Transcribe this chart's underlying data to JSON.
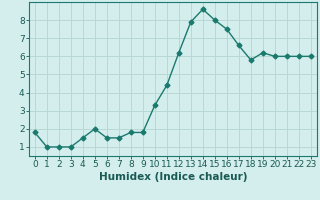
{
  "x": [
    0,
    1,
    2,
    3,
    4,
    5,
    6,
    7,
    8,
    9,
    10,
    11,
    12,
    13,
    14,
    15,
    16,
    17,
    18,
    19,
    20,
    21,
    22,
    23
  ],
  "y": [
    1.8,
    1.0,
    1.0,
    1.0,
    1.5,
    2.0,
    1.5,
    1.5,
    1.8,
    1.8,
    3.3,
    4.4,
    6.2,
    7.9,
    8.6,
    8.0,
    7.5,
    6.6,
    5.8,
    6.2,
    6.0,
    6.0,
    6.0,
    6.0
  ],
  "xlabel": "Humidex (Indice chaleur)",
  "xlim": [
    -0.5,
    23.5
  ],
  "ylim": [
    0.5,
    9.0
  ],
  "yticks": [
    1,
    2,
    3,
    4,
    5,
    6,
    7,
    8
  ],
  "xticks": [
    0,
    1,
    2,
    3,
    4,
    5,
    6,
    7,
    8,
    9,
    10,
    11,
    12,
    13,
    14,
    15,
    16,
    17,
    18,
    19,
    20,
    21,
    22,
    23
  ],
  "line_color": "#1a7a6e",
  "marker": "D",
  "marker_size": 2.5,
  "bg_color": "#d4eeed",
  "grid_color": "#b8d8d5",
  "xlabel_fontsize": 7.5,
  "tick_fontsize": 6.5,
  "line_width": 1.0,
  "text_color": "#1a5a54"
}
